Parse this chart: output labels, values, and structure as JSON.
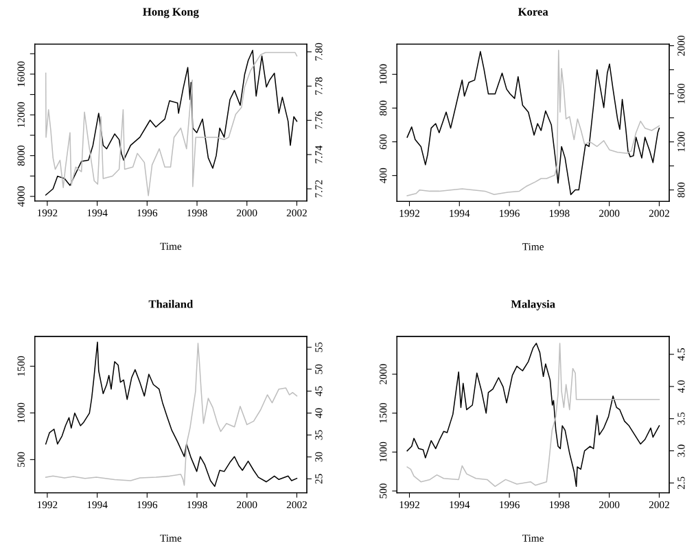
{
  "chart_data": [
    {
      "type": "line",
      "title": "Hong Kong",
      "xlabel": "Time",
      "xlim": [
        1991.5,
        2002.4
      ],
      "xticks": [
        1992,
        1994,
        1996,
        1998,
        2000,
        2002
      ],
      "ylim": [
        3550,
        18940
      ],
      "yticks": [
        4000,
        {
          "value": 6000,
          "label": null
        },
        8000,
        {
          "value": 10000,
          "label": null
        },
        12000,
        {
          "value": 14000,
          "label": null
        },
        16000,
        {
          "value": 18000,
          "label": null
        }
      ],
      "y2lim": [
        7.7129,
        7.8045
      ],
      "y2ticks": [
        7.72,
        7.74,
        7.76,
        7.78,
        {
          "value": 7.8,
          "label": "7.80"
        }
      ],
      "series": [
        {
          "color": "#000000",
          "x": [
            1991.94,
            1992.23,
            1992.41,
            1992.69,
            1992.91,
            1993.37,
            1993.65,
            1993.83,
            1994.06,
            1994.24,
            1994.38,
            1994.7,
            1994.88,
            1994.97,
            1995.06,
            1995.34,
            1995.71,
            1996.12,
            1996.35,
            1996.71,
            1996.9,
            1997.22,
            1997.26,
            1997.44,
            1997.63,
            1997.72,
            1997.76,
            1997.83,
            1997.99,
            1998.22,
            1998.45,
            1998.63,
            1998.77,
            1998.91,
            1999.09,
            1999.32,
            1999.5,
            1999.73,
            1999.91,
            2000.05,
            2000.23,
            2000.37,
            2000.6,
            2000.78,
            2000.91,
            2001.1,
            2001.28,
            2001.42,
            2001.65,
            2001.74,
            2001.88,
            2002.0
          ],
          "values": [
            4135,
            4740,
            5980,
            5750,
            5080,
            7440,
            7550,
            9010,
            12160,
            9010,
            8670,
            10130,
            9570,
            8220,
            7550,
            9010,
            9800,
            11480,
            10810,
            11590,
            13390,
            13160,
            12160,
            14520,
            16650,
            13500,
            15190,
            10700,
            10250,
            11590,
            7780,
            6760,
            8000,
            10700,
            9800,
            13500,
            14400,
            12940,
            15980,
            17330,
            18340,
            13840,
            17780,
            14740,
            15420,
            16090,
            12160,
            13730,
            11370,
            9010,
            11820,
            11370
          ]
        },
        {
          "color": "#bebebe",
          "axis": "y2",
          "x": [
            1991.94,
            1991.95,
            1992.05,
            1992.14,
            1992.23,
            1992.32,
            1992.51,
            1992.64,
            1992.73,
            1992.91,
            1992.96,
            1993.14,
            1993.37,
            1993.49,
            1993.65,
            1993.88,
            1994.02,
            1994.15,
            1994.24,
            1994.61,
            1994.88,
            1995.04,
            1995.1,
            1995.43,
            1995.61,
            1995.89,
            1996.05,
            1996.2,
            1996.49,
            1996.71,
            1996.94,
            1997.08,
            1997.35,
            1997.58,
            1997.81,
            1997.83,
            1997.95,
            1998.18,
            1998.54,
            1998.77,
            1999.09,
            1999.27,
            1999.55,
            1999.78,
            1999.91,
            2000.14,
            2000.37,
            2000.55,
            2000.74,
            2001.28,
            2001.93,
            2002.0
          ],
          "values": [
            7.7876,
            7.7501,
            7.7662,
            7.7542,
            7.7381,
            7.7314,
            7.7367,
            7.7207,
            7.7327,
            7.7528,
            7.722,
            7.7327,
            7.73,
            7.7648,
            7.7474,
            7.7247,
            7.7227,
            7.7621,
            7.726,
            7.7274,
            7.7314,
            7.7662,
            7.7314,
            7.7327,
            7.7407,
            7.7354,
            7.716,
            7.734,
            7.7434,
            7.7327,
            7.7327,
            7.7501,
            7.7555,
            7.7434,
            7.7836,
            7.7213,
            7.7501,
            7.7501,
            7.7501,
            7.7501,
            7.7488,
            7.7501,
            7.7635,
            7.7675,
            7.7796,
            7.7889,
            7.7943,
            7.7983,
            7.7996,
            7.7996,
            7.7996,
            7.7976
          ]
        }
      ]
    },
    {
      "type": "line",
      "title": "Korea",
      "xlabel": "Time",
      "xlim": [
        1991.5,
        2002.4
      ],
      "xticks": [
        1992,
        1994,
        1996,
        1998,
        2000,
        2002
      ],
      "ylim": [
        246.7,
        1179
      ],
      "yticks": [
        400,
        600,
        800,
        1000
      ],
      "y2lim": [
        704.8,
        2013
      ],
      "y2ticks": [
        800,
        {
          "value": 1000,
          "label": null
        },
        1200,
        {
          "value": 1400,
          "label": null
        },
        1600,
        {
          "value": 1800,
          "label": null
        },
        2000
      ],
      "series": [
        {
          "color": "#000000",
          "x": [
            1991.91,
            1992.09,
            1992.23,
            1992.46,
            1992.64,
            1992.73,
            1992.87,
            1993.05,
            1993.19,
            1993.47,
            1993.65,
            1993.97,
            1994.11,
            1994.2,
            1994.38,
            1994.61,
            1994.84,
            1994.98,
            1995.16,
            1995.43,
            1995.71,
            1995.89,
            1996.03,
            1996.21,
            1996.35,
            1996.53,
            1996.76,
            1996.99,
            1997.13,
            1997.27,
            1997.45,
            1997.68,
            1997.84,
            1997.95,
            1998.09,
            1998.23,
            1998.46,
            1998.64,
            1998.78,
            1999.05,
            1999.19,
            1999.37,
            1999.51,
            1999.65,
            1999.78,
            1999.92,
            2000.01,
            2000.15,
            2000.33,
            2000.42,
            2000.52,
            2000.65,
            2000.75,
            2000.84,
            2000.97,
            2001.07,
            2001.3,
            2001.43,
            2001.62,
            2001.75,
            2001.94,
            2002.0
          ],
          "values": [
            627,
            688,
            613,
            572,
            464,
            525,
            681,
            708,
            654,
            776,
            681,
            884,
            966,
            871,
            952,
            966,
            1135,
            1034,
            884,
            884,
            1007,
            912,
            884,
            857,
            986,
            817,
            776,
            640,
            708,
            667,
            783,
            701,
            504,
            355,
            572,
            504,
            287,
            315,
            315,
            586,
            572,
            817,
            1027,
            912,
            803,
            1007,
            1061,
            912,
            735,
            674,
            851,
            694,
            545,
            511,
            518,
            627,
            504,
            627,
            545,
            477,
            654,
            681
          ]
        },
        {
          "color": "#bebebe",
          "axis": "y2",
          "x": [
            1991.91,
            1992.27,
            1992.41,
            1992.82,
            1993.19,
            1994.11,
            1995.02,
            1995.39,
            1995.94,
            1996.4,
            1996.67,
            1997.04,
            1997.27,
            1997.49,
            1997.82,
            1997.91,
            1997.97,
            1998.03,
            1998.09,
            1998.18,
            1998.27,
            1998.41,
            1998.59,
            1998.73,
            1998.87,
            1999.01,
            1999.23,
            1999.51,
            1999.78,
            2000.01,
            2000.33,
            2000.7,
            2000.88,
            2001.07,
            2001.25,
            2001.43,
            2001.7,
            2002.0
          ],
          "values": [
            752,
            771,
            800,
            790,
            790,
            810,
            790,
            762,
            781,
            790,
            829,
            867,
            895,
            895,
            924,
            1010,
            1962,
            1448,
            1810,
            1638,
            1391,
            1410,
            1219,
            1391,
            1295,
            1181,
            1200,
            1162,
            1210,
            1133,
            1114,
            1105,
            1124,
            1276,
            1372,
            1314,
            1295,
            1333
          ]
        }
      ]
    },
    {
      "type": "line",
      "title": "Thailand",
      "xlabel": "Time",
      "xlim": [
        1991.5,
        2002.4
      ],
      "xticks": [
        1992,
        1994,
        1996,
        1998,
        2000,
        2002
      ],
      "ylim": [
        144.6,
        1818.6
      ],
      "yticks": [
        500,
        1000,
        1500
      ],
      "y2lim": [
        21.82,
        57.47
      ],
      "y2ticks": [
        25,
        30,
        35,
        40,
        45,
        50,
        55
      ],
      "series": [
        {
          "color": "#000000",
          "x": [
            1991.94,
            1992.09,
            1992.27,
            1992.41,
            1992.59,
            1992.73,
            1992.87,
            1992.96,
            1993.1,
            1993.33,
            1993.46,
            1993.69,
            1993.78,
            1993.87,
            1994.01,
            1994.06,
            1994.24,
            1994.38,
            1994.47,
            1994.56,
            1994.7,
            1994.84,
            1994.93,
            1995.06,
            1995.2,
            1995.38,
            1995.52,
            1995.71,
            1995.89,
            1996.07,
            1996.25,
            1996.48,
            1996.62,
            1996.8,
            1996.99,
            1997.22,
            1997.49,
            1997.58,
            1997.76,
            1997.99,
            1998.13,
            1998.31,
            1998.54,
            1998.71,
            1998.91,
            1999.09,
            1999.32,
            1999.5,
            1999.68,
            1999.82,
            2000.05,
            2000.27,
            2000.46,
            2000.78,
            2001.1,
            2001.28,
            2001.65,
            2001.79,
            2002.0
          ],
          "values": [
            667,
            789,
            826,
            667,
            752,
            863,
            949,
            838,
            998,
            863,
            900,
            998,
            1157,
            1377,
            1757,
            1451,
            1206,
            1304,
            1402,
            1255,
            1549,
            1512,
            1328,
            1353,
            1145,
            1377,
            1463,
            1328,
            1181,
            1414,
            1304,
            1255,
            1108,
            961,
            814,
            691,
            532,
            667,
            520,
            373,
            532,
            446,
            275,
            213,
            385,
            373,
            471,
            532,
            434,
            385,
            483,
            385,
            311,
            262,
            324,
            287,
            324,
            275,
            299
          ]
        },
        {
          "color": "#bebebe",
          "axis": "y2",
          "x": [
            1991.94,
            1992.23,
            1992.69,
            1993.05,
            1993.51,
            1993.97,
            1994.7,
            1995.34,
            1995.71,
            1996.35,
            1996.9,
            1997.35,
            1997.44,
            1997.49,
            1997.58,
            1997.72,
            1997.94,
            1998.04,
            1998.1,
            1998.17,
            1998.26,
            1998.45,
            1998.63,
            1998.82,
            1998.95,
            1999.18,
            1999.5,
            1999.73,
            2000.0,
            2000.27,
            2000.55,
            2000.82,
            2001.01,
            2001.28,
            2001.56,
            2001.7,
            2001.83,
            2002.0
          ],
          "values": [
            25.37,
            25.63,
            25.21,
            25.52,
            25.1,
            25.37,
            24.84,
            24.58,
            25.21,
            25.37,
            25.63,
            26.04,
            24.84,
            23.54,
            32.93,
            36.59,
            44.94,
            55.9,
            51.2,
            44.94,
            37.63,
            43.37,
            41.29,
            37.63,
            35.81,
            37.63,
            36.85,
            41.55,
            37.37,
            38.15,
            40.76,
            44.16,
            42.33,
            45.46,
            45.72,
            44.16,
            44.68,
            43.9
          ]
        }
      ]
    },
    {
      "type": "line",
      "title": "Malaysia",
      "xlabel": "Time",
      "xlim": [
        1991.5,
        2002.4
      ],
      "xticks": [
        1992,
        1994,
        1996,
        1998,
        2000,
        2002
      ],
      "ylim": [
        476.5,
        2485
      ],
      "yticks": [
        500,
        1000,
        1500,
        2000
      ],
      "y2lim": [
        2.347,
        4.778
      ],
      "y2ticks": [
        2.5,
        {
          "value": 3,
          "label": "3.0"
        },
        3.5,
        {
          "value": 4,
          "label": "4.0"
        },
        4.5
      ],
      "series": [
        {
          "color": "#000000",
          "x": [
            1991.91,
            1992.09,
            1992.18,
            1992.37,
            1992.55,
            1992.64,
            1992.87,
            1993.05,
            1993.19,
            1993.37,
            1993.51,
            1993.74,
            1993.97,
            1994.06,
            1994.15,
            1994.29,
            1994.52,
            1994.7,
            1994.89,
            1995.07,
            1995.16,
            1995.34,
            1995.57,
            1995.75,
            1995.89,
            1996.12,
            1996.3,
            1996.53,
            1996.76,
            1996.95,
            1997.08,
            1997.22,
            1997.36,
            1997.45,
            1997.63,
            1997.72,
            1997.77,
            1997.86,
            1997.95,
            1998.04,
            1998.12,
            1998.23,
            1998.41,
            1998.59,
            1998.68,
            1998.72,
            1998.86,
            1999.01,
            1999.23,
            1999.37,
            1999.51,
            1999.6,
            1999.78,
            1999.97,
            2000.15,
            2000.29,
            2000.42,
            2000.61,
            2000.79,
            2001.02,
            2001.25,
            2001.43,
            2001.66,
            2001.75,
            2002.0
          ],
          "values": [
            1015,
            1073,
            1176,
            1044,
            1029,
            926,
            1147,
            1044,
            1147,
            1265,
            1250,
            1485,
            2029,
            1573,
            1882,
            1544,
            1603,
            2015,
            1779,
            1500,
            1765,
            1809,
            1956,
            1838,
            1632,
            1985,
            2103,
            2044,
            2162,
            2338,
            2397,
            2279,
            1971,
            2132,
            1926,
            1603,
            1662,
            1279,
            1073,
            1044,
            1338,
            1279,
            985,
            750,
            559,
            809,
            779,
            1015,
            1073,
            1044,
            1471,
            1221,
            1309,
            1456,
            1720,
            1573,
            1544,
            1397,
            1338,
            1221,
            1103,
            1162,
            1309,
            1191,
            1338
          ]
        },
        {
          "color": "#bebebe",
          "axis": "y2",
          "x": [
            1991.91,
            1992.05,
            1992.18,
            1992.46,
            1992.82,
            1993.1,
            1993.37,
            1993.97,
            1994.11,
            1994.29,
            1994.66,
            1995.11,
            1995.43,
            1995.85,
            1996.3,
            1996.85,
            1997.04,
            1997.49,
            1997.58,
            1997.71,
            1997.86,
            1997.95,
            1998.02,
            1998.09,
            1998.18,
            1998.27,
            1998.41,
            1998.54,
            1998.64,
            1998.68,
            1999.6,
            2002.0
          ],
          "values": [
            2.749,
            2.714,
            2.607,
            2.518,
            2.553,
            2.625,
            2.571,
            2.553,
            2.767,
            2.642,
            2.571,
            2.553,
            2.447,
            2.553,
            2.482,
            2.518,
            2.464,
            2.518,
            2.82,
            3.319,
            3.532,
            3.888,
            4.671,
            3.924,
            3.674,
            4.03,
            3.639,
            4.28,
            4.209,
            3.799,
            3.799,
            3.799
          ]
        }
      ]
    }
  ]
}
